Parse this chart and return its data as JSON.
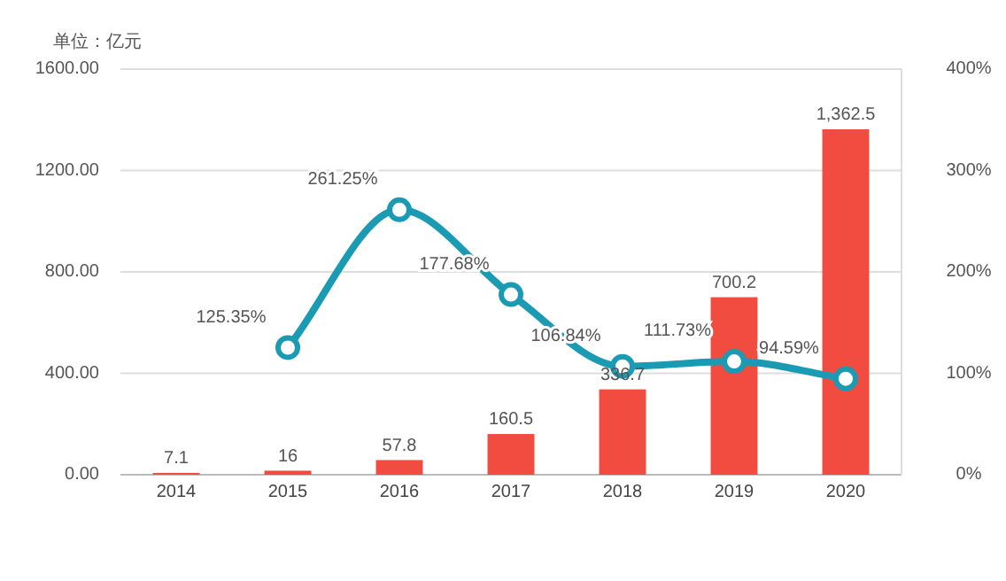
{
  "chart_data": {
    "type": "bar",
    "ylabel": "单位：亿元",
    "categories": [
      "2014",
      "2015",
      "2016",
      "2017",
      "2018",
      "2019",
      "2020"
    ],
    "series": [
      {
        "color": "#f24b40",
        "values": [
          7.1,
          16,
          57.8,
          160.5,
          336.7,
          700.2,
          1362.5
        ],
        "value_labels": [
          "7.1",
          "16",
          "57.8",
          "160.5",
          "336.7",
          "700.2",
          "1,362.5"
        ]
      },
      {
        "type": "line",
        "axis": "y2",
        "color": "#1b9ab3",
        "marker": "circle",
        "values": [
          null,
          125.35,
          261.25,
          177.68,
          106.84,
          111.73,
          94.59
        ],
        "value_labels": [
          null,
          "125.35%",
          "261.25%",
          "177.68%",
          "106.84%",
          "111.73%",
          "94.59%"
        ]
      }
    ],
    "ylim": [
      0,
      1600
    ],
    "yticks": [
      {
        "value": 0,
        "label": "0.00"
      },
      {
        "value": 400,
        "label": "400.00"
      },
      {
        "value": 800,
        "label": "800.00"
      },
      {
        "value": 1200,
        "label": "1200.00"
      },
      {
        "value": 1600,
        "label": "1600.00"
      }
    ],
    "y2lim": [
      0,
      400
    ],
    "y2ticks": [
      {
        "value": 0,
        "label": "0%"
      },
      {
        "value": 100,
        "label": "100%"
      },
      {
        "value": 200,
        "label": "200%"
      },
      {
        "value": 300,
        "label": "300%"
      },
      {
        "value": 400,
        "label": "400%"
      }
    ],
    "grid": "y"
  }
}
